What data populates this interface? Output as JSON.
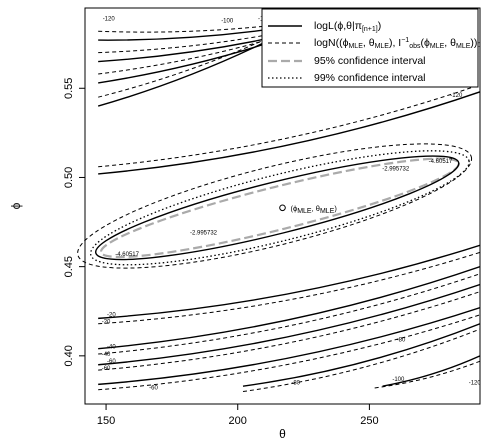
{
  "chart_data": {
    "type": "contour",
    "title": "",
    "xlabel": "θ",
    "ylabel": "ϕ",
    "xlim": [
      142,
      292
    ],
    "ylim": [
      0.373,
      0.595
    ],
    "x_ticks": [
      "150",
      "200",
      "250"
    ],
    "x_tick_values": [
      150,
      200,
      250
    ],
    "y_ticks": [
      "0.40",
      "0.45",
      "0.50",
      "0.55"
    ],
    "y_tick_values": [
      0.4,
      0.45,
      0.5,
      0.55
    ],
    "grid": false,
    "legend_position": "top-right",
    "legend": [
      {
        "main": "logL(ϕ,θ|π",
        "sub": "[n+1]",
        "tail": ")",
        "style": "solid"
      },
      {
        "main": "logN((ϕ",
        "sub": "MLE",
        "mid": ", θ",
        "sub2": "MLE",
        "tail": "), I",
        "sup": "−1",
        "sub3": "obs",
        "tail2": "(ϕ",
        "sub4": "MLE",
        "tail3": ", θ",
        "sub5": "MLE",
        "tail4": "))",
        "style": "dashed"
      },
      {
        "text": "95% confidence interval",
        "style": "gray-dashed"
      },
      {
        "text": "99% confidence interval",
        "style": "dotted"
      }
    ],
    "mle_point": {
      "x": 217,
      "y": 0.483,
      "label_main": "(ϕ",
      "label_sub": "MLE",
      "label_mid": ", θ",
      "label_sub2": "MLE",
      "label_tail": ")"
    },
    "solid_curves": [
      {
        "x0": 147,
        "y0": 0.577,
        "x1": 256,
        "y1": 0.595
      },
      {
        "x0": 147,
        "y0": 0.565,
        "x1": 256,
        "y1": 0.595
      },
      {
        "x0": 147,
        "y0": 0.553,
        "x1": 248,
        "y1": 0.595
      },
      {
        "x0": 147,
        "y0": 0.54,
        "x1": 235,
        "y1": 0.595
      },
      {
        "x0": 147,
        "y0": 0.502,
        "x1": 292,
        "y1": 0.548
      },
      {
        "x0": 147,
        "y0": 0.421,
        "x1": 292,
        "y1": 0.462
      },
      {
        "x0": 147,
        "y0": 0.404,
        "x1": 292,
        "y1": 0.45
      },
      {
        "x0": 147,
        "y0": 0.395,
        "x1": 292,
        "y1": 0.44
      },
      {
        "x0": 147,
        "y0": 0.384,
        "x1": 292,
        "y1": 0.427
      },
      {
        "x0": 202,
        "y0": 0.383,
        "x1": 292,
        "y1": 0.418
      },
      {
        "x0": 255,
        "y0": 0.383,
        "x1": 292,
        "y1": 0.4
      }
    ],
    "dashed_curves": [
      {
        "x0": 147,
        "y0": 0.582,
        "x1": 256,
        "y1": 0.595
      },
      {
        "x0": 147,
        "y0": 0.57,
        "x1": 256,
        "y1": 0.595
      },
      {
        "x0": 147,
        "y0": 0.558,
        "x1": 248,
        "y1": 0.595
      },
      {
        "x0": 147,
        "y0": 0.545,
        "x1": 235,
        "y1": 0.595
      },
      {
        "x0": 147,
        "y0": 0.506,
        "x1": 292,
        "y1": 0.552
      },
      {
        "x0": 147,
        "y0": 0.418,
        "x1": 292,
        "y1": 0.458
      },
      {
        "x0": 147,
        "y0": 0.401,
        "x1": 292,
        "y1": 0.446
      },
      {
        "x0": 147,
        "y0": 0.392,
        "x1": 292,
        "y1": 0.436
      },
      {
        "x0": 147,
        "y0": 0.381,
        "x1": 292,
        "y1": 0.423
      },
      {
        "x0": 202,
        "y0": 0.38,
        "x1": 292,
        "y1": 0.415
      },
      {
        "x0": 252,
        "y0": 0.382,
        "x1": 292,
        "y1": 0.397
      }
    ],
    "ellipses": [
      {
        "cx": 216,
        "cy": 0.483,
        "a": 70,
        "b": 0.012,
        "style": "gray-dashed"
      },
      {
        "cx": 215,
        "cy": 0.483,
        "a": 71,
        "b": 0.0145,
        "style": "solid-black"
      },
      {
        "cx": 216,
        "cy": 0.483,
        "a": 74,
        "b": 0.0185,
        "style": "dotted"
      },
      {
        "cx": 214,
        "cy": 0.484,
        "a": 77,
        "b": 0.022,
        "style": "dashed"
      }
    ],
    "contour_labels": [
      {
        "text": "-120",
        "x": 151,
        "y": 0.588
      },
      {
        "text": "-100",
        "x": 210,
        "y": 0.588
      },
      {
        "text": "-100",
        "x": 196,
        "y": 0.587
      },
      {
        "text": "-100",
        "x": 290,
        "y": 0.573
      },
      {
        "text": "-120",
        "x": 283,
        "y": 0.545
      },
      {
        "text": "-2.995732",
        "x": 187,
        "y": 0.468
      },
      {
        "text": "-2.995732",
        "x": 260,
        "y": 0.504
      },
      {
        "text": "-4.60517",
        "x": 158,
        "y": 0.456
      },
      {
        "text": "-4.60517",
        "x": 277,
        "y": 0.508
      },
      {
        "text": "-20",
        "x": 152,
        "y": 0.422
      },
      {
        "text": "-20",
        "x": 150,
        "y": 0.418
      },
      {
        "text": "-40",
        "x": 152,
        "y": 0.404
      },
      {
        "text": "-40",
        "x": 150,
        "y": 0.4
      },
      {
        "text": "-60",
        "x": 152,
        "y": 0.396
      },
      {
        "text": "-60",
        "x": 150,
        "y": 0.392
      },
      {
        "text": "-60",
        "x": 168,
        "y": 0.381
      },
      {
        "text": "-80",
        "x": 222,
        "y": 0.384
      },
      {
        "text": "-80",
        "x": 262,
        "y": 0.408
      },
      {
        "text": "-100",
        "x": 261,
        "y": 0.386
      },
      {
        "text": "-120",
        "x": 290,
        "y": 0.384
      }
    ]
  }
}
